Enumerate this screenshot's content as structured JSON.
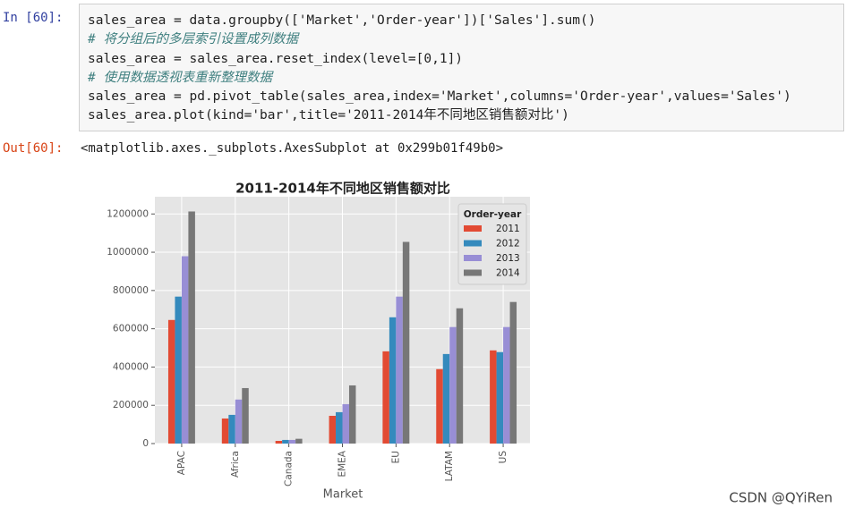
{
  "cell": {
    "in_prompt": "In  [60]:",
    "code": {
      "lines": [
        "sales_area = data.groupby(['Market','Order-year'])['Sales'].sum()",
        "# 将分组后的多层索引设置成列数据",
        "sales_area = sales_area.reset_index(level=[0,1])",
        "# 使用数据透视表重新整理数据",
        "sales_area = pd.pivot_table(sales_area,index='Market',columns='Order-year',values='Sales')",
        "sales_area.plot(kind='bar',title='2011-2014年不同地区销售额对比')"
      ]
    },
    "out_prompt": "Out[60]:",
    "output": "<matplotlib.axes._subplots.AxesSubplot at 0x299b01f49b0>"
  },
  "chart_data": {
    "type": "bar",
    "title": "2011-2014年不同地区销售额对比",
    "x_label": "Market",
    "categories": [
      "APAC",
      "Africa",
      "Canada",
      "EMEA",
      "EU",
      "LATAM",
      "US"
    ],
    "legend_title": "Order-year",
    "legend": "upper right",
    "grid": true,
    "series": [
      {
        "name": "2011",
        "color": "#E24A33",
        "values": [
          646000,
          131000,
          14000,
          145000,
          482000,
          389000,
          487000
        ]
      },
      {
        "name": "2012",
        "color": "#348ABD",
        "values": [
          768000,
          150000,
          19000,
          164000,
          660000,
          468000,
          478000
        ]
      },
      {
        "name": "2013",
        "color": "#988ED5",
        "values": [
          979000,
          230000,
          19000,
          206000,
          768000,
          609000,
          609000
        ]
      },
      {
        "name": "2014",
        "color": "#777777",
        "values": [
          1213000,
          290000,
          25000,
          304000,
          1054000,
          707000,
          740000
        ]
      }
    ],
    "ylim": [
      0,
      1290000
    ],
    "yticks": [
      0,
      200000,
      400000,
      600000,
      800000,
      1000000,
      1200000
    ]
  },
  "watermark": "CSDN @QYiRen"
}
